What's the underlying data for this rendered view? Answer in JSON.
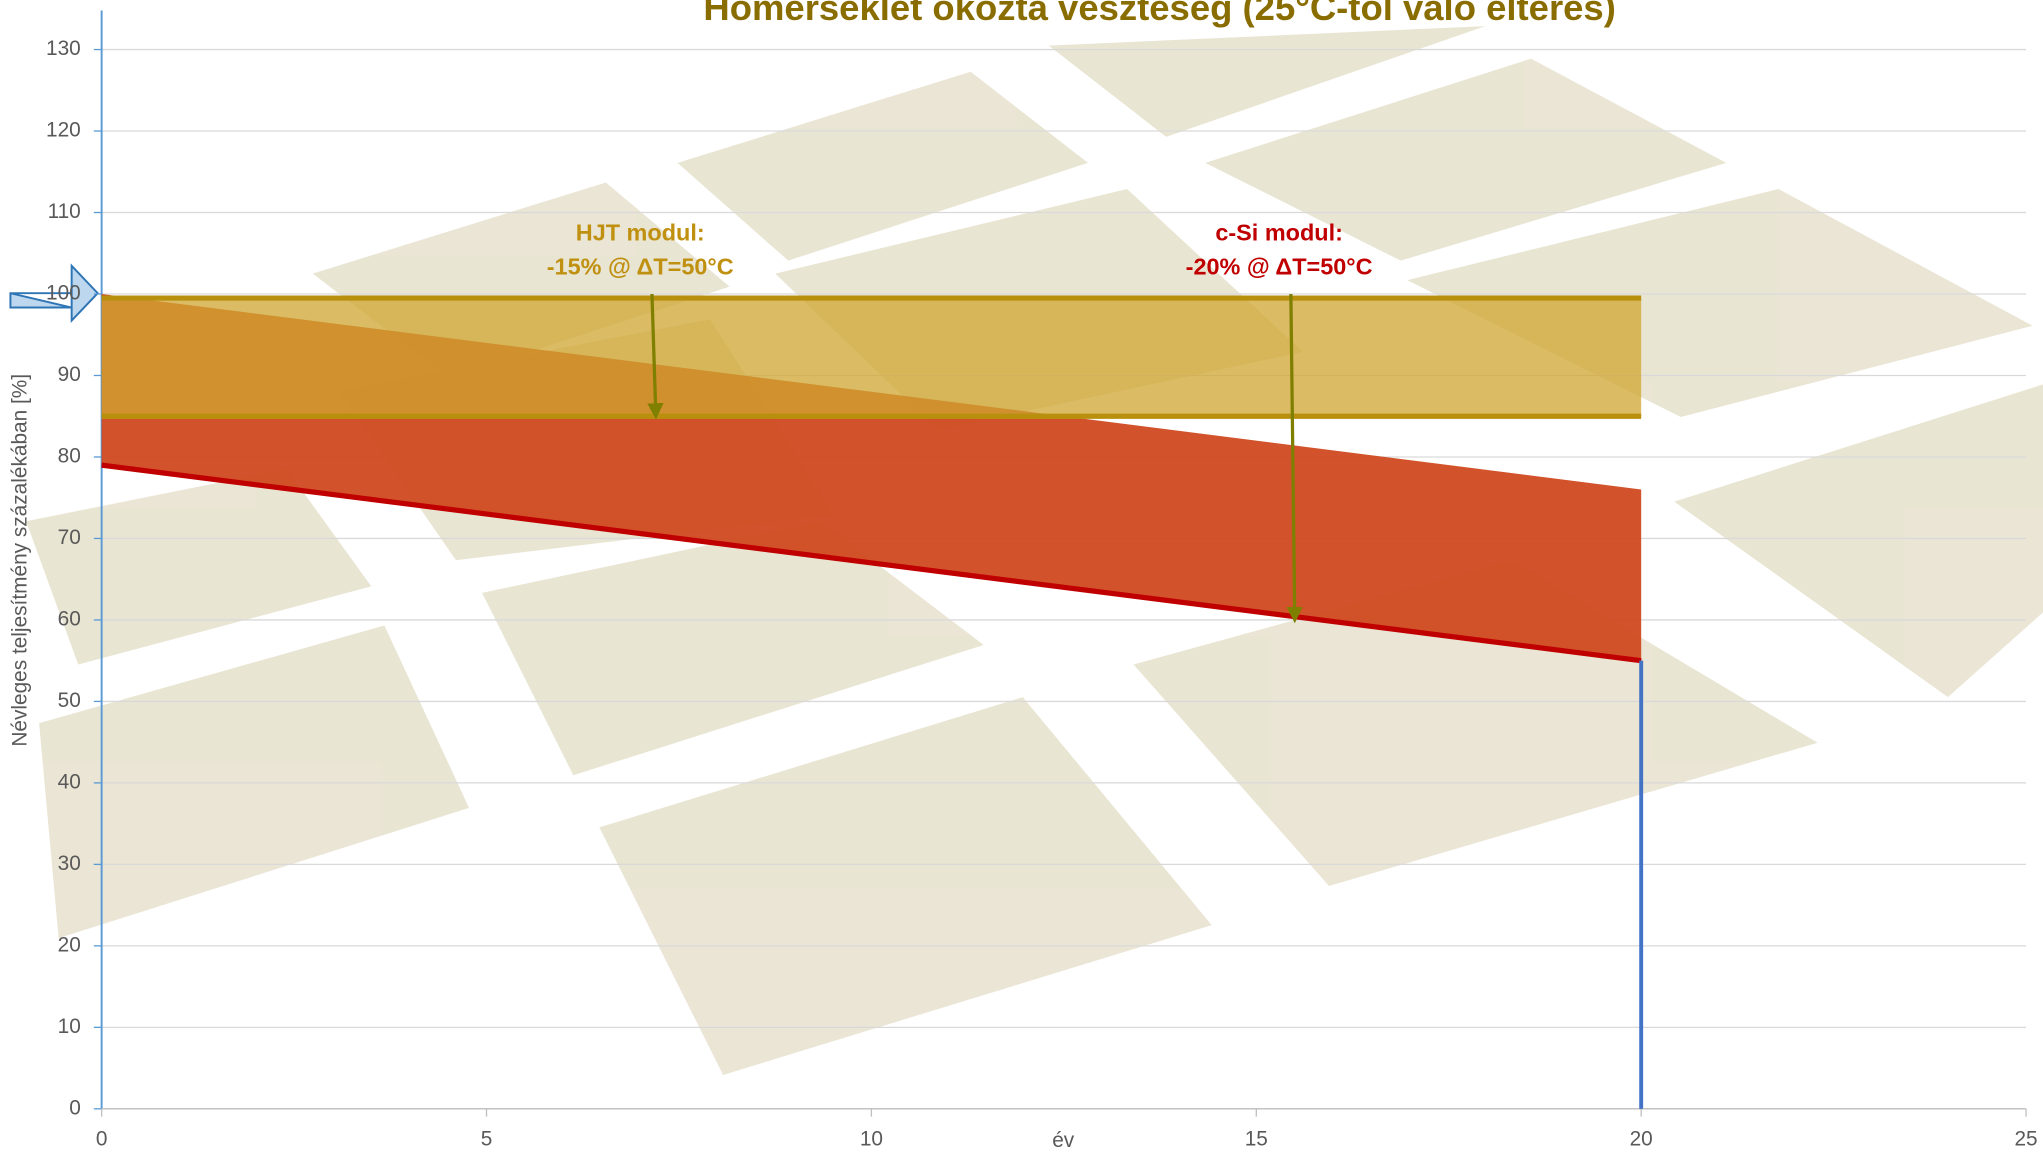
{
  "chart_data": {
    "type": "area",
    "title": "Hőmérséklet okozta veszteség (25°C-tól való eltérés)",
    "xlabel": "év",
    "ylabel": "Névleges teljesítmény százalékában [%]",
    "xlim": [
      0,
      25
    ],
    "ylim": [
      0,
      130
    ],
    "xticks": [
      0,
      5,
      10,
      15,
      20,
      25
    ],
    "yticks": [
      0,
      10,
      20,
      30,
      40,
      50,
      60,
      70,
      80,
      90,
      100,
      110,
      120,
      130
    ],
    "grid": true,
    "x": [
      0,
      20
    ],
    "bands": [
      {
        "fill": "#d04a20",
        "line_color": "#c00000",
        "upper": [
          100,
          76
        ],
        "lower": [
          79,
          55
        ]
      },
      {
        "fill": "#cfa630",
        "line_color": "#b8900e",
        "upper": [
          99.5,
          99.5
        ],
        "lower": [
          85,
          85
        ]
      }
    ],
    "drop_line": {
      "x": 20,
      "values": [
        55,
        0
      ],
      "color": "#4472c4"
    },
    "annotations": [
      {
        "lines": [
          "HJT modul:",
          "-15% @ ΔT=50°C"
        ],
        "color": "#c09010",
        "x": 7.2,
        "from": 100,
        "to": 85
      },
      {
        "lines": [
          "c-Si modul:",
          "-20% @ ΔT=50°C"
        ],
        "color": "#c00000",
        "x": 15.5,
        "from": 100,
        "to": 60
      }
    ]
  }
}
